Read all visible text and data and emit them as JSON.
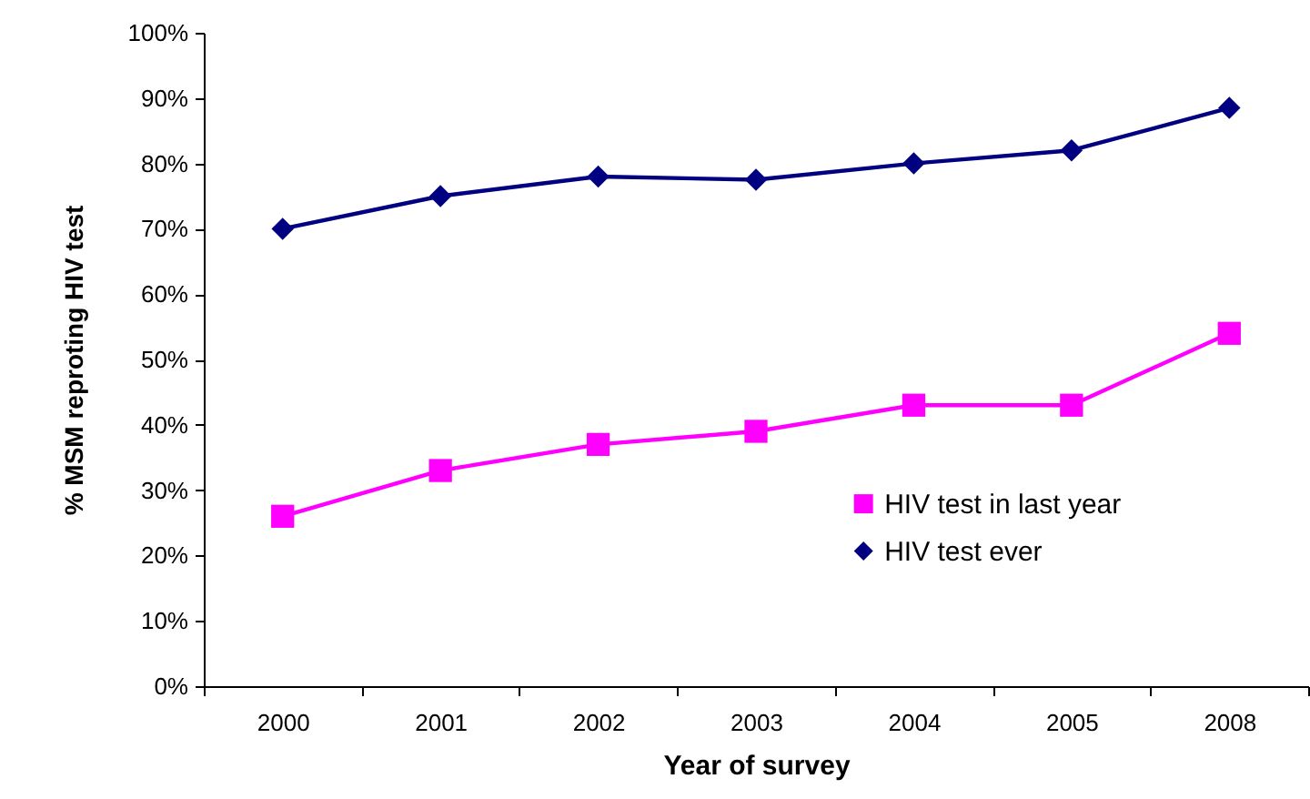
{
  "chart_data": {
    "type": "line",
    "xlabel": "Year of survey",
    "ylabel": "% MSM reproting HIV test",
    "categories": [
      "2000",
      "2001",
      "2002",
      "2003",
      "2004",
      "2005",
      "2008"
    ],
    "series": [
      {
        "name": "HIV test in last year",
        "color": "#ff00ff",
        "marker": "square",
        "values": [
          26,
          33,
          37,
          39,
          43,
          43,
          54
        ]
      },
      {
        "name": "HIV test ever",
        "color": "#000080",
        "marker": "diamond",
        "values": [
          70,
          75,
          78,
          77.5,
          80,
          82,
          88.5
        ]
      }
    ],
    "ylim": [
      0,
      100
    ],
    "yticks": [
      {
        "value": 0,
        "label": "0%"
      },
      {
        "value": 10,
        "label": "10%"
      },
      {
        "value": 20,
        "label": "20%"
      },
      {
        "value": 30,
        "label": "30%"
      },
      {
        "value": 40,
        "label": "40%"
      },
      {
        "value": 50,
        "label": "50%"
      },
      {
        "value": 60,
        "label": "60%"
      },
      {
        "value": 70,
        "label": "70%"
      },
      {
        "value": 80,
        "label": "80%"
      },
      {
        "value": 90,
        "label": "90%"
      },
      {
        "value": 100,
        "label": "100%"
      }
    ],
    "grid": false,
    "legend": "bottom right",
    "line_style": "solid"
  }
}
